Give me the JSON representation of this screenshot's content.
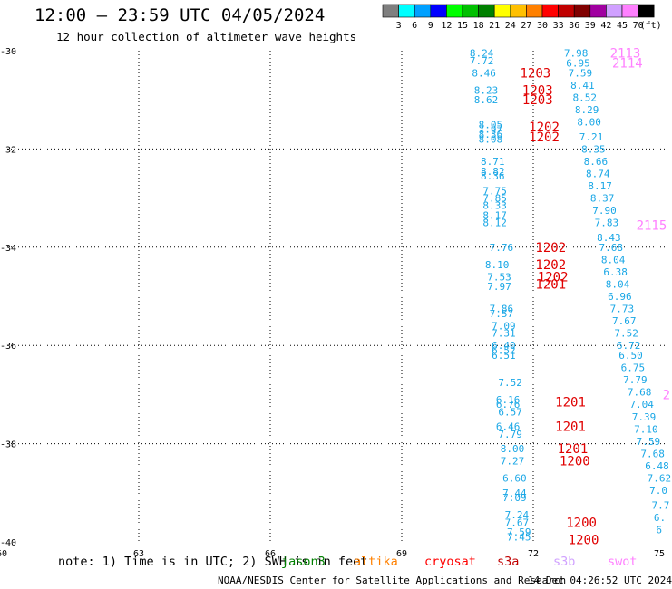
{
  "header": {
    "title": "12:00 — 23:59 UTC 04/05/2024",
    "subtitle": "12 hour collection of altimeter wave heights"
  },
  "colorbar": {
    "unit": "(ft)",
    "bins": [
      {
        "color": "#7f7f7f",
        "label": "3"
      },
      {
        "color": "#00ffff",
        "label": "6"
      },
      {
        "color": "#00a0ff",
        "label": "9"
      },
      {
        "color": "#0000ff",
        "label": "12"
      },
      {
        "color": "#00ff00",
        "label": "15"
      },
      {
        "color": "#00c000",
        "label": "18"
      },
      {
        "color": "#008000",
        "label": "21"
      },
      {
        "color": "#ffff00",
        "label": "24"
      },
      {
        "color": "#ffc000",
        "label": "27"
      },
      {
        "color": "#ff8000",
        "label": "30"
      },
      {
        "color": "#ff0000",
        "label": "33"
      },
      {
        "color": "#c00000",
        "label": "36"
      },
      {
        "color": "#800000",
        "label": "39"
      },
      {
        "color": "#a000a0",
        "label": "42"
      },
      {
        "color": "#d0a0ff",
        "label": "45"
      },
      {
        "color": "#ff80ff",
        "label": "70"
      },
      {
        "color": "#000000",
        "label": ""
      }
    ]
  },
  "footer": {
    "note": "note: 1) Time is in UTC; 2) SWH is in feet",
    "missions": [
      {
        "name": "jason3",
        "color": "#008000"
      },
      {
        "name": "altika",
        "color": "#ff8000"
      },
      {
        "name": "cryosat",
        "color": "#ff0000"
      },
      {
        "name": "s3a",
        "color": "#c00000"
      },
      {
        "name": "s3b",
        "color": "#d0a0ff"
      },
      {
        "name": "swot",
        "color": "#ff80ff"
      }
    ],
    "credit": "NOAA/NESDIS Center for Satellite Applications and Research",
    "timestamp": "14 Dec 04:26:52 UTC 2024"
  },
  "chart_data": {
    "type": "scatter",
    "title": "12:00 — 23:59 UTC 04/05/2024",
    "subtitle": "12 hour collection of altimeter wave heights",
    "xlim": [
      60,
      75
    ],
    "ylim": [
      -40,
      -30
    ],
    "x_ticks": [
      60,
      63,
      66,
      69,
      72,
      75
    ],
    "y_ticks": [
      -30,
      -32,
      -34,
      -36,
      -38,
      -40
    ],
    "grid": true,
    "colors": {
      "swh_text": "#1aa7e6",
      "time_text_red": "#e00000",
      "time_text_pink": "#ff80ff"
    },
    "series": [
      {
        "name": "cryosat",
        "swh_points": [
          {
            "lon": 70.55,
            "lat": -30.05,
            "swh": "8.24"
          },
          {
            "lon": 70.55,
            "lat": -30.2,
            "swh": "7.72"
          },
          {
            "lon": 70.6,
            "lat": -30.45,
            "swh": "8.46"
          },
          {
            "lon": 70.65,
            "lat": -30.8,
            "swh": "8.23"
          },
          {
            "lon": 70.65,
            "lat": -31.0,
            "swh": "8.62"
          },
          {
            "lon": 70.75,
            "lat": -31.5,
            "swh": "8.05"
          },
          {
            "lon": 70.75,
            "lat": -31.6,
            "swh": "7.97"
          },
          {
            "lon": 70.75,
            "lat": -31.7,
            "swh": "8.36"
          },
          {
            "lon": 70.75,
            "lat": -31.8,
            "swh": "8.08"
          },
          {
            "lon": 70.8,
            "lat": -32.25,
            "swh": "8.71"
          },
          {
            "lon": 70.8,
            "lat": -32.45,
            "swh": "8.82"
          },
          {
            "lon": 70.8,
            "lat": -32.55,
            "swh": "8.36"
          },
          {
            "lon": 70.85,
            "lat": -32.85,
            "swh": "7.75"
          },
          {
            "lon": 70.85,
            "lat": -33.0,
            "swh": "7.85"
          },
          {
            "lon": 70.85,
            "lat": -33.15,
            "swh": "8.33"
          },
          {
            "lon": 70.85,
            "lat": -33.35,
            "swh": "8.17"
          },
          {
            "lon": 70.85,
            "lat": -33.5,
            "swh": "8.12"
          },
          {
            "lon": 71.0,
            "lat": -34.0,
            "swh": "7.76"
          },
          {
            "lon": 70.9,
            "lat": -34.35,
            "swh": "8.10"
          },
          {
            "lon": 70.95,
            "lat": -34.6,
            "swh": "7.53"
          },
          {
            "lon": 70.95,
            "lat": -34.8,
            "swh": "7.97"
          },
          {
            "lon": 71.0,
            "lat": -35.25,
            "swh": "7.86"
          },
          {
            "lon": 71.0,
            "lat": -35.35,
            "swh": "7.57"
          },
          {
            "lon": 71.05,
            "lat": -35.6,
            "swh": "7.09"
          },
          {
            "lon": 71.05,
            "lat": -35.75,
            "swh": "7.31"
          },
          {
            "lon": 71.05,
            "lat": -36.0,
            "swh": "6.40"
          },
          {
            "lon": 71.05,
            "lat": -36.1,
            "swh": "6.52"
          },
          {
            "lon": 71.05,
            "lat": -36.2,
            "swh": "6.51"
          },
          {
            "lon": 71.2,
            "lat": -36.75,
            "swh": "7.52"
          },
          {
            "lon": 71.15,
            "lat": -37.1,
            "swh": "6.16"
          },
          {
            "lon": 71.15,
            "lat": -37.2,
            "swh": "6.76"
          },
          {
            "lon": 71.2,
            "lat": -37.35,
            "swh": "6.57"
          },
          {
            "lon": 71.15,
            "lat": -37.65,
            "swh": "6.46"
          },
          {
            "lon": 71.2,
            "lat": -37.8,
            "swh": "7.79"
          },
          {
            "lon": 71.25,
            "lat": -38.1,
            "swh": "8.00"
          },
          {
            "lon": 71.25,
            "lat": -38.35,
            "swh": "7.27"
          },
          {
            "lon": 71.3,
            "lat": -38.7,
            "swh": "6.60"
          },
          {
            "lon": 71.3,
            "lat": -39.0,
            "swh": "7.44"
          },
          {
            "lon": 71.3,
            "lat": -39.1,
            "swh": "7.09"
          },
          {
            "lon": 71.35,
            "lat": -39.45,
            "swh": "7.24"
          },
          {
            "lon": 71.35,
            "lat": -39.6,
            "swh": "7.67"
          },
          {
            "lon": 71.4,
            "lat": -39.8,
            "swh": "7.59"
          },
          {
            "lon": 71.4,
            "lat": -39.9,
            "swh": "7.45"
          }
        ],
        "time_labels": [
          {
            "lon": 71.7,
            "lat": -30.45,
            "text": "1203"
          },
          {
            "lon": 71.75,
            "lat": -30.8,
            "text": "1203"
          },
          {
            "lon": 71.75,
            "lat": -31.0,
            "text": "1203"
          },
          {
            "lon": 71.9,
            "lat": -31.55,
            "text": "1202"
          },
          {
            "lon": 71.9,
            "lat": -31.75,
            "text": "1202"
          },
          {
            "lon": 72.05,
            "lat": -34.0,
            "text": "1202"
          },
          {
            "lon": 72.05,
            "lat": -34.35,
            "text": "1202"
          },
          {
            "lon": 72.1,
            "lat": -34.6,
            "text": "1202"
          },
          {
            "lon": 72.05,
            "lat": -34.75,
            "text": "1201"
          },
          {
            "lon": 72.5,
            "lat": -37.15,
            "text": "1201"
          },
          {
            "lon": 72.5,
            "lat": -37.65,
            "text": "1201"
          },
          {
            "lon": 72.55,
            "lat": -38.1,
            "text": "1201"
          },
          {
            "lon": 72.6,
            "lat": -38.35,
            "text": "1200"
          },
          {
            "lon": 72.75,
            "lat": -39.6,
            "text": "1200"
          },
          {
            "lon": 72.8,
            "lat": -39.95,
            "text": "1200"
          }
        ]
      },
      {
        "name": "swot",
        "swh_points": [
          {
            "lon": 72.7,
            "lat": -30.05,
            "swh": "7.98"
          },
          {
            "lon": 72.75,
            "lat": -30.25,
            "swh": "6.95"
          },
          {
            "lon": 72.8,
            "lat": -30.45,
            "swh": "7.59"
          },
          {
            "lon": 72.85,
            "lat": -30.7,
            "swh": "8.41"
          },
          {
            "lon": 72.9,
            "lat": -30.95,
            "swh": "8.52"
          },
          {
            "lon": 72.95,
            "lat": -31.2,
            "swh": "8.29"
          },
          {
            "lon": 73.0,
            "lat": -31.45,
            "swh": "8.00"
          },
          {
            "lon": 73.05,
            "lat": -31.75,
            "swh": "7.21"
          },
          {
            "lon": 73.1,
            "lat": -32.0,
            "swh": "8.35"
          },
          {
            "lon": 73.15,
            "lat": -32.25,
            "swh": "8.66"
          },
          {
            "lon": 73.2,
            "lat": -32.5,
            "swh": "8.74"
          },
          {
            "lon": 73.25,
            "lat": -32.75,
            "swh": "8.17"
          },
          {
            "lon": 73.3,
            "lat": -33.0,
            "swh": "8.37"
          },
          {
            "lon": 73.35,
            "lat": -33.25,
            "swh": "7.90"
          },
          {
            "lon": 73.4,
            "lat": -33.5,
            "swh": "7.83"
          },
          {
            "lon": 73.45,
            "lat": -33.8,
            "swh": "8.43"
          },
          {
            "lon": 73.5,
            "lat": -34.0,
            "swh": "7.68"
          },
          {
            "lon": 73.55,
            "lat": -34.25,
            "swh": "8.04"
          },
          {
            "lon": 73.6,
            "lat": -34.5,
            "swh": "6.38"
          },
          {
            "lon": 73.65,
            "lat": -34.75,
            "swh": "8.04"
          },
          {
            "lon": 73.7,
            "lat": -35.0,
            "swh": "6.96"
          },
          {
            "lon": 73.75,
            "lat": -35.25,
            "swh": "7.73"
          },
          {
            "lon": 73.8,
            "lat": -35.5,
            "swh": "7.67"
          },
          {
            "lon": 73.85,
            "lat": -35.75,
            "swh": "7.52"
          },
          {
            "lon": 73.9,
            "lat": -36.0,
            "swh": "6.72"
          },
          {
            "lon": 73.95,
            "lat": -36.2,
            "swh": "6.50"
          },
          {
            "lon": 74.0,
            "lat": -36.45,
            "swh": "6.75"
          },
          {
            "lon": 74.05,
            "lat": -36.7,
            "swh": "7.79"
          },
          {
            "lon": 74.15,
            "lat": -36.95,
            "swh": "7.68"
          },
          {
            "lon": 74.2,
            "lat": -37.2,
            "swh": "7.04"
          },
          {
            "lon": 74.25,
            "lat": -37.45,
            "swh": "7.39"
          },
          {
            "lon": 74.3,
            "lat": -37.7,
            "swh": "7.10"
          },
          {
            "lon": 74.35,
            "lat": -37.95,
            "swh": "7.59"
          },
          {
            "lon": 74.45,
            "lat": -38.2,
            "swh": "7.68"
          },
          {
            "lon": 74.55,
            "lat": -38.45,
            "swh": "6.48"
          },
          {
            "lon": 74.6,
            "lat": -38.7,
            "swh": "7.62"
          },
          {
            "lon": 74.65,
            "lat": -38.95,
            "swh": "7.0"
          },
          {
            "lon": 74.7,
            "lat": -39.25,
            "swh": "7.7"
          },
          {
            "lon": 74.75,
            "lat": -39.5,
            "swh": "6."
          },
          {
            "lon": 74.8,
            "lat": -39.75,
            "swh": "6"
          }
        ],
        "time_labels": [
          {
            "lon": 73.75,
            "lat": -30.05,
            "text": "2113"
          },
          {
            "lon": 73.8,
            "lat": -30.25,
            "text": "2114"
          },
          {
            "lon": 74.35,
            "lat": -33.55,
            "text": "2115"
          },
          {
            "lon": 74.95,
            "lat": -37.0,
            "text": "2"
          }
        ]
      }
    ]
  }
}
